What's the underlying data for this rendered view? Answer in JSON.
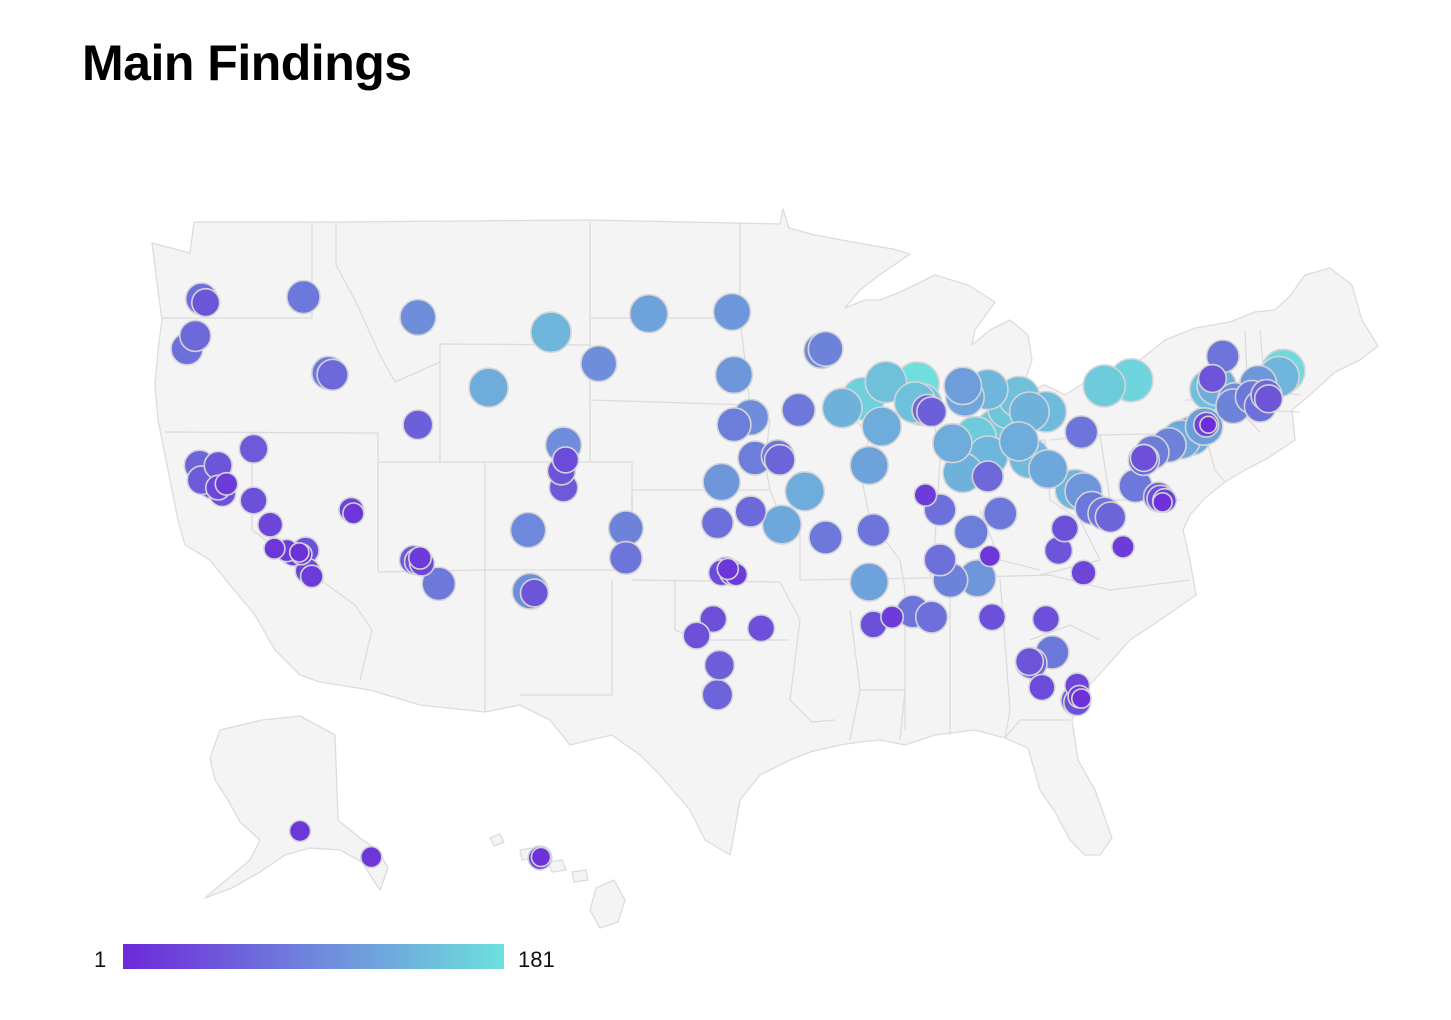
{
  "page": {
    "title": "Main Findings"
  },
  "legend": {
    "min_label": "1",
    "max_label": "181",
    "min_value": 1,
    "max_value": 181,
    "min_color": "#6d28d9",
    "max_color": "#6ee0dc"
  },
  "map": {
    "land_color": "#f4f4f5",
    "border_color": "#dcdcdc",
    "marker_stroke": "#d4d4d8",
    "markers": [
      {
        "lon": -122.3,
        "lat": 47.6,
        "v": 70
      },
      {
        "lon": -122.1,
        "lat": 47.4,
        "v": 45
      },
      {
        "lon": -122.6,
        "lat": 45.6,
        "v": 65
      },
      {
        "lon": -123.0,
        "lat": 44.9,
        "v": 70
      },
      {
        "lon": -117.4,
        "lat": 47.7,
        "v": 80
      },
      {
        "lon": -111.9,
        "lat": 46.6,
        "v": 100
      },
      {
        "lon": -116.2,
        "lat": 43.6,
        "v": 80
      },
      {
        "lon": -116.0,
        "lat": 43.5,
        "v": 65
      },
      {
        "lon": -105.5,
        "lat": 45.8,
        "v": 140
      },
      {
        "lon": -108.5,
        "lat": 42.8,
        "v": 130
      },
      {
        "lon": -100.8,
        "lat": 46.8,
        "v": 120
      },
      {
        "lon": -96.8,
        "lat": 46.9,
        "v": 110
      },
      {
        "lon": -103.2,
        "lat": 44.1,
        "v": 100
      },
      {
        "lon": -96.7,
        "lat": 43.5,
        "v": 110
      },
      {
        "lon": -92.5,
        "lat": 44.8,
        "v": 95
      },
      {
        "lon": -92.3,
        "lat": 44.9,
        "v": 90
      },
      {
        "lon": -111.9,
        "lat": 40.8,
        "v": 55
      },
      {
        "lon": -119.8,
        "lat": 39.5,
        "v": 50
      },
      {
        "lon": -104.9,
        "lat": 39.7,
        "v": 100
      },
      {
        "lon": -105.0,
        "lat": 38.3,
        "v": 45
      },
      {
        "lon": -104.8,
        "lat": 38.9,
        "v": 35
      },
      {
        "lon": -104.9,
        "lat": 37.4,
        "v": 50
      },
      {
        "lon": -122.4,
        "lat": 38.6,
        "v": 60
      },
      {
        "lon": -121.5,
        "lat": 38.6,
        "v": 45
      },
      {
        "lon": -122.3,
        "lat": 37.8,
        "v": 50
      },
      {
        "lon": -121.8,
        "lat": 37.6,
        "v": 55
      },
      {
        "lon": -121.5,
        "lat": 37.4,
        "v": 30
      },
      {
        "lon": -121.1,
        "lat": 37.6,
        "v": 20
      },
      {
        "lon": -121.3,
        "lat": 37.1,
        "v": 40
      },
      {
        "lon": -119.8,
        "lat": 36.7,
        "v": 40
      },
      {
        "lon": -119.0,
        "lat": 35.4,
        "v": 30
      },
      {
        "lon": -118.8,
        "lat": 34.1,
        "v": 15
      },
      {
        "lon": -118.2,
        "lat": 34.0,
        "v": 20
      },
      {
        "lon": -117.9,
        "lat": 33.8,
        "v": 25
      },
      {
        "lon": -117.3,
        "lat": 34.0,
        "v": 40
      },
      {
        "lon": -117.5,
        "lat": 33.8,
        "v": 15
      },
      {
        "lon": -117.6,
        "lat": 33.9,
        "v": 10
      },
      {
        "lon": -117.2,
        "lat": 32.9,
        "v": 30
      },
      {
        "lon": -117.0,
        "lat": 32.6,
        "v": 20
      },
      {
        "lon": -115.1,
        "lat": 36.2,
        "v": 30
      },
      {
        "lon": -115.0,
        "lat": 36.0,
        "v": 15
      },
      {
        "lon": -112.1,
        "lat": 33.5,
        "v": 50
      },
      {
        "lon": -111.9,
        "lat": 33.4,
        "v": 40
      },
      {
        "lon": -111.7,
        "lat": 33.3,
        "v": 30
      },
      {
        "lon": -111.8,
        "lat": 33.6,
        "v": 20
      },
      {
        "lon": -110.9,
        "lat": 32.2,
        "v": 80
      },
      {
        "lon": -106.6,
        "lat": 35.1,
        "v": 95
      },
      {
        "lon": -106.5,
        "lat": 31.8,
        "v": 100
      },
      {
        "lon": -106.3,
        "lat": 31.7,
        "v": 45
      },
      {
        "lon": -101.9,
        "lat": 35.2,
        "v": 90
      },
      {
        "lon": -101.9,
        "lat": 33.6,
        "v": 75
      },
      {
        "lon": -97.3,
        "lat": 37.7,
        "v": 110
      },
      {
        "lon": -95.7,
        "lat": 39.0,
        "v": 85
      },
      {
        "lon": -95.9,
        "lat": 41.2,
        "v": 100
      },
      {
        "lon": -96.7,
        "lat": 40.8,
        "v": 85
      },
      {
        "lon": -93.6,
        "lat": 41.6,
        "v": 80
      },
      {
        "lon": -94.6,
        "lat": 39.1,
        "v": 75
      },
      {
        "lon": -94.5,
        "lat": 38.9,
        "v": 60
      },
      {
        "lon": -93.3,
        "lat": 37.2,
        "v": 130
      },
      {
        "lon": -95.9,
        "lat": 36.1,
        "v": 65
      },
      {
        "lon": -97.5,
        "lat": 35.5,
        "v": 70
      },
      {
        "lon": -94.4,
        "lat": 35.4,
        "v": 125
      },
      {
        "lon": -97.1,
        "lat": 32.9,
        "v": 45
      },
      {
        "lon": -96.8,
        "lat": 32.8,
        "v": 30
      },
      {
        "lon": -96.6,
        "lat": 32.7,
        "v": 20
      },
      {
        "lon": -97.3,
        "lat": 32.8,
        "v": 35
      },
      {
        "lon": -97.0,
        "lat": 33.0,
        "v": 15
      },
      {
        "lon": -97.7,
        "lat": 30.3,
        "v": 40
      },
      {
        "lon": -98.5,
        "lat": 29.4,
        "v": 40
      },
      {
        "lon": -95.4,
        "lat": 29.8,
        "v": 40
      },
      {
        "lon": -97.4,
        "lat": 27.8,
        "v": 55
      },
      {
        "lon": -97.5,
        "lat": 26.2,
        "v": 60
      },
      {
        "lon": -92.3,
        "lat": 34.7,
        "v": 80
      },
      {
        "lon": -90.2,
        "lat": 38.6,
        "v": 120
      },
      {
        "lon": -90.0,
        "lat": 35.1,
        "v": 75
      },
      {
        "lon": -89.4,
        "lat": 43.1,
        "v": 150
      },
      {
        "lon": -87.9,
        "lat": 43.0,
        "v": 180
      },
      {
        "lon": -88.0,
        "lat": 42.0,
        "v": 150
      },
      {
        "lon": -87.7,
        "lat": 41.9,
        "v": 155
      },
      {
        "lon": -89.6,
        "lat": 40.7,
        "v": 130
      },
      {
        "lon": -91.5,
        "lat": 41.7,
        "v": 135
      },
      {
        "lon": -90.5,
        "lat": 42.2,
        "v": 165
      },
      {
        "lon": -87.4,
        "lat": 41.6,
        "v": 65
      },
      {
        "lon": -87.2,
        "lat": 41.5,
        "v": 55
      },
      {
        "lon": -85.7,
        "lat": 42.9,
        "v": 115
      },
      {
        "lon": -85.6,
        "lat": 42.3,
        "v": 125
      },
      {
        "lon": -84.5,
        "lat": 42.7,
        "v": 140
      },
      {
        "lon": -83.0,
        "lat": 42.3,
        "v": 150
      },
      {
        "lon": -83.5,
        "lat": 41.7,
        "v": 155
      },
      {
        "lon": -82.5,
        "lat": 41.5,
        "v": 135
      },
      {
        "lon": -81.7,
        "lat": 41.5,
        "v": 145
      },
      {
        "lon": -84.1,
        "lat": 40.5,
        "v": 160
      },
      {
        "lon": -86.2,
        "lat": 39.8,
        "v": 130
      },
      {
        "lon": -85.1,
        "lat": 40.1,
        "v": 160
      },
      {
        "lon": -84.5,
        "lat": 39.1,
        "v": 140
      },
      {
        "lon": -83.0,
        "lat": 39.9,
        "v": 130
      },
      {
        "lon": -82.5,
        "lat": 39.0,
        "v": 145
      },
      {
        "lon": -81.6,
        "lat": 38.4,
        "v": 125
      },
      {
        "lon": -80.0,
        "lat": 40.4,
        "v": 75
      },
      {
        "lon": -85.7,
        "lat": 38.2,
        "v": 135
      },
      {
        "lon": -84.5,
        "lat": 38.0,
        "v": 65
      },
      {
        "lon": -87.5,
        "lat": 37.0,
        "v": 20
      },
      {
        "lon": -86.8,
        "lat": 36.2,
        "v": 70
      },
      {
        "lon": -85.3,
        "lat": 35.0,
        "v": 85
      },
      {
        "lon": -83.9,
        "lat": 36.0,
        "v": 80
      },
      {
        "lon": -86.8,
        "lat": 33.5,
        "v": 70
      },
      {
        "lon": -86.3,
        "lat": 32.4,
        "v": 90
      },
      {
        "lon": -85.0,
        "lat": 32.5,
        "v": 110
      },
      {
        "lon": -84.4,
        "lat": 33.7,
        "v": 15
      },
      {
        "lon": -81.1,
        "lat": 34.0,
        "v": 45
      },
      {
        "lon": -80.8,
        "lat": 35.2,
        "v": 40
      },
      {
        "lon": -79.9,
        "lat": 32.8,
        "v": 30
      },
      {
        "lon": -90.2,
        "lat": 32.3,
        "v": 120
      },
      {
        "lon": -90.0,
        "lat": 30.0,
        "v": 40
      },
      {
        "lon": -89.1,
        "lat": 30.4,
        "v": 20
      },
      {
        "lon": -88.1,
        "lat": 30.7,
        "v": 75
      },
      {
        "lon": -87.2,
        "lat": 30.4,
        "v": 70
      },
      {
        "lon": -84.3,
        "lat": 30.4,
        "v": 40
      },
      {
        "lon": -81.7,
        "lat": 30.3,
        "v": 40
      },
      {
        "lon": -82.5,
        "lat": 28.0,
        "v": 45
      },
      {
        "lon": -82.4,
        "lat": 27.9,
        "v": 65
      },
      {
        "lon": -81.4,
        "lat": 28.5,
        "v": 80
      },
      {
        "lon": -81.9,
        "lat": 26.6,
        "v": 35
      },
      {
        "lon": -80.2,
        "lat": 26.7,
        "v": 30
      },
      {
        "lon": -80.3,
        "lat": 25.9,
        "v": 50
      },
      {
        "lon": -80.2,
        "lat": 25.8,
        "v": 40
      },
      {
        "lon": -80.1,
        "lat": 26.1,
        "v": 20
      },
      {
        "lon": -80.0,
        "lat": 26.0,
        "v": 10
      },
      {
        "lon": -80.3,
        "lat": 37.3,
        "v": 140
      },
      {
        "lon": -79.9,
        "lat": 37.2,
        "v": 110
      },
      {
        "lon": -78.9,
        "lat": 36.0,
        "v": 75
      },
      {
        "lon": -78.6,
        "lat": 35.8,
        "v": 60
      },
      {
        "lon": -79.5,
        "lat": 36.3,
        "v": 80
      },
      {
        "lon": -78.0,
        "lat": 34.2,
        "v": 20
      },
      {
        "lon": -77.4,
        "lat": 37.5,
        "v": 80
      },
      {
        "lon": -76.3,
        "lat": 36.9,
        "v": 55
      },
      {
        "lon": -76.2,
        "lat": 36.8,
        "v": 40
      },
      {
        "lon": -76.0,
        "lat": 36.7,
        "v": 25
      },
      {
        "lon": -76.1,
        "lat": 36.6,
        "v": 10
      },
      {
        "lon": -77.0,
        "lat": 38.9,
        "v": 65
      },
      {
        "lon": -76.6,
        "lat": 39.3,
        "v": 85
      },
      {
        "lon": -77.0,
        "lat": 39.0,
        "v": 40
      },
      {
        "lon": -75.8,
        "lat": 39.7,
        "v": 90
      },
      {
        "lon": -75.2,
        "lat": 40.0,
        "v": 125
      },
      {
        "lon": -74.7,
        "lat": 40.2,
        "v": 130
      },
      {
        "lon": -74.1,
        "lat": 40.7,
        "v": 115
      },
      {
        "lon": -74.0,
        "lat": 40.8,
        "v": 30
      },
      {
        "lon": -73.9,
        "lat": 40.8,
        "v": 5
      },
      {
        "lon": -78.9,
        "lat": 42.9,
        "v": 160
      },
      {
        "lon": -77.6,
        "lat": 43.2,
        "v": 170
      },
      {
        "lon": -73.8,
        "lat": 42.7,
        "v": 150
      },
      {
        "lon": -73.5,
        "lat": 42.9,
        "v": 130
      },
      {
        "lon": -73.2,
        "lat": 44.5,
        "v": 75
      },
      {
        "lon": -73.7,
        "lat": 43.3,
        "v": 45
      },
      {
        "lon": -72.7,
        "lat": 41.8,
        "v": 90
      },
      {
        "lon": -72.6,
        "lat": 42.1,
        "v": 100
      },
      {
        "lon": -71.8,
        "lat": 42.3,
        "v": 80
      },
      {
        "lon": -71.4,
        "lat": 41.8,
        "v": 70
      },
      {
        "lon": -71.1,
        "lat": 42.4,
        "v": 65
      },
      {
        "lon": -71.0,
        "lat": 42.2,
        "v": 45
      },
      {
        "lon": -71.5,
        "lat": 43.0,
        "v": 110
      },
      {
        "lon": -70.3,
        "lat": 43.7,
        "v": 175
      },
      {
        "lon": -70.5,
        "lat": 43.4,
        "v": 140
      },
      {
        "ak": true,
        "lon": -149.9,
        "lat": 61.2,
        "v": 15
      },
      {
        "ak": true,
        "lon": -134.4,
        "lat": 58.3,
        "v": 15
      },
      {
        "hi": true,
        "lon": -157.9,
        "lat": 21.3,
        "v": 25
      },
      {
        "hi": true,
        "lon": -157.8,
        "lat": 21.4,
        "v": 10
      }
    ]
  }
}
